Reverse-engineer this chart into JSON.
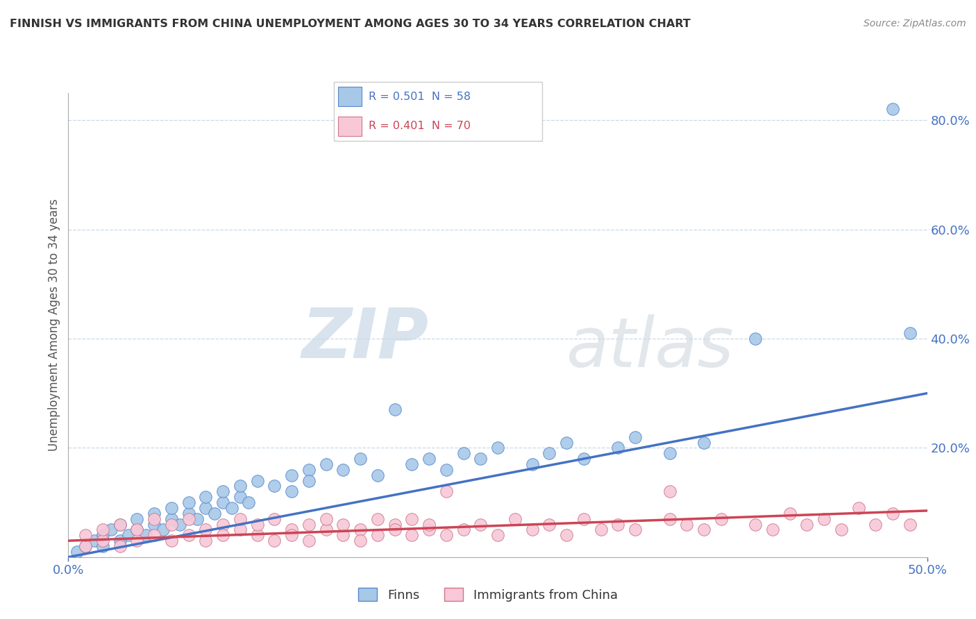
{
  "title": "FINNISH VS IMMIGRANTS FROM CHINA UNEMPLOYMENT AMONG AGES 30 TO 34 YEARS CORRELATION CHART",
  "source_text": "Source: ZipAtlas.com",
  "ylabel": "Unemployment Among Ages 30 to 34 years",
  "legend_entry_1": "R = 0.501  N = 58",
  "legend_entry_2": "R = 0.401  N = 70",
  "legend_labels": [
    "Finns",
    "Immigrants from China"
  ],
  "finns_color": "#a8c8e8",
  "finns_edge": "#5588cc",
  "finns_line": "#4472c4",
  "china_color": "#f8c8d8",
  "china_edge": "#cc7788",
  "china_line": "#cc4455",
  "legend_text_blue": "#4472c4",
  "legend_text_pink": "#cc4455",
  "finns_x": [
    0.005,
    0.01,
    0.015,
    0.02,
    0.02,
    0.025,
    0.03,
    0.03,
    0.035,
    0.04,
    0.04,
    0.045,
    0.05,
    0.05,
    0.055,
    0.06,
    0.06,
    0.065,
    0.07,
    0.07,
    0.075,
    0.08,
    0.08,
    0.085,
    0.09,
    0.09,
    0.095,
    0.1,
    0.1,
    0.105,
    0.11,
    0.12,
    0.13,
    0.13,
    0.14,
    0.14,
    0.15,
    0.16,
    0.17,
    0.18,
    0.19,
    0.2,
    0.21,
    0.22,
    0.23,
    0.24,
    0.25,
    0.27,
    0.28,
    0.29,
    0.3,
    0.32,
    0.33,
    0.35,
    0.37,
    0.4,
    0.48,
    0.49
  ],
  "finns_y": [
    0.01,
    0.02,
    0.03,
    0.04,
    0.02,
    0.05,
    0.03,
    0.06,
    0.04,
    0.05,
    0.07,
    0.04,
    0.06,
    0.08,
    0.05,
    0.07,
    0.09,
    0.06,
    0.08,
    0.1,
    0.07,
    0.09,
    0.11,
    0.08,
    0.1,
    0.12,
    0.09,
    0.11,
    0.13,
    0.1,
    0.14,
    0.13,
    0.15,
    0.12,
    0.16,
    0.14,
    0.17,
    0.16,
    0.18,
    0.15,
    0.27,
    0.17,
    0.18,
    0.16,
    0.19,
    0.18,
    0.2,
    0.17,
    0.19,
    0.21,
    0.18,
    0.2,
    0.22,
    0.19,
    0.21,
    0.4,
    0.82,
    0.41
  ],
  "china_x": [
    0.01,
    0.01,
    0.02,
    0.02,
    0.03,
    0.03,
    0.04,
    0.04,
    0.05,
    0.05,
    0.06,
    0.06,
    0.07,
    0.07,
    0.08,
    0.08,
    0.09,
    0.09,
    0.1,
    0.1,
    0.11,
    0.11,
    0.12,
    0.12,
    0.13,
    0.13,
    0.14,
    0.14,
    0.15,
    0.15,
    0.16,
    0.16,
    0.17,
    0.17,
    0.18,
    0.18,
    0.19,
    0.19,
    0.2,
    0.2,
    0.21,
    0.21,
    0.22,
    0.23,
    0.24,
    0.25,
    0.26,
    0.27,
    0.28,
    0.29,
    0.3,
    0.31,
    0.32,
    0.33,
    0.35,
    0.36,
    0.37,
    0.38,
    0.4,
    0.41,
    0.42,
    0.43,
    0.44,
    0.45,
    0.46,
    0.47,
    0.48,
    0.49,
    0.35,
    0.22
  ],
  "china_y": [
    0.02,
    0.04,
    0.03,
    0.05,
    0.02,
    0.06,
    0.03,
    0.05,
    0.04,
    0.07,
    0.03,
    0.06,
    0.04,
    0.07,
    0.05,
    0.03,
    0.06,
    0.04,
    0.05,
    0.07,
    0.04,
    0.06,
    0.03,
    0.07,
    0.05,
    0.04,
    0.06,
    0.03,
    0.05,
    0.07,
    0.04,
    0.06,
    0.05,
    0.03,
    0.07,
    0.04,
    0.06,
    0.05,
    0.04,
    0.07,
    0.05,
    0.06,
    0.04,
    0.05,
    0.06,
    0.04,
    0.07,
    0.05,
    0.06,
    0.04,
    0.07,
    0.05,
    0.06,
    0.05,
    0.07,
    0.06,
    0.05,
    0.07,
    0.06,
    0.05,
    0.08,
    0.06,
    0.07,
    0.05,
    0.09,
    0.06,
    0.08,
    0.06,
    0.12,
    0.12
  ],
  "finns_line_x": [
    0.0,
    0.5
  ],
  "finns_line_y": [
    0.0,
    0.3
  ],
  "china_line_x": [
    0.0,
    0.5
  ],
  "china_line_y": [
    0.03,
    0.085
  ],
  "xlim": [
    0.0,
    0.5
  ],
  "ylim": [
    0.0,
    0.85
  ],
  "ytick_vals": [
    0.2,
    0.4,
    0.6,
    0.8
  ],
  "watermark_zip": "ZIP",
  "watermark_atlas": "atlas",
  "background_color": "#ffffff",
  "grid_color": "#c8d8e8",
  "title_color": "#333333",
  "tick_color": "#4472c4",
  "axis_color": "#aaaaaa"
}
